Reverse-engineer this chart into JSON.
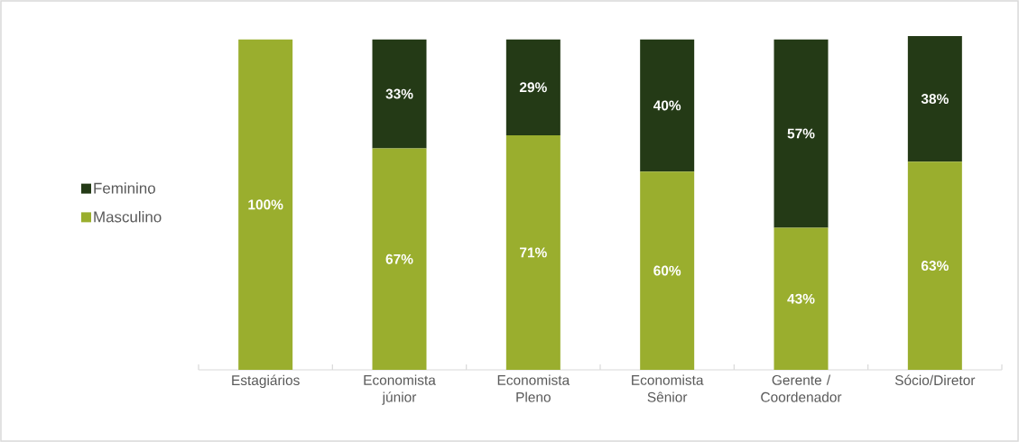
{
  "chart_data": {
    "type": "bar",
    "stacked": true,
    "legend": "left",
    "categories": [
      "Estagiários",
      "Economista júnior",
      "Economista Pleno",
      "Economista Sênior",
      "Gerente / Coordenador",
      "Sócio/Diretor"
    ],
    "series": [
      {
        "name": "Masculino",
        "color": "#9aae2e",
        "values": [
          100,
          67,
          71,
          60,
          43,
          63
        ],
        "value_labels": [
          "100%",
          "67%",
          "71%",
          "60%",
          "43%",
          "63%"
        ]
      },
      {
        "name": "Feminino",
        "color": "#243a16",
        "values": [
          null,
          33,
          29,
          40,
          57,
          38
        ],
        "value_labels": [
          null,
          "33%",
          "29%",
          "40%",
          "57%",
          "38%"
        ]
      }
    ]
  }
}
